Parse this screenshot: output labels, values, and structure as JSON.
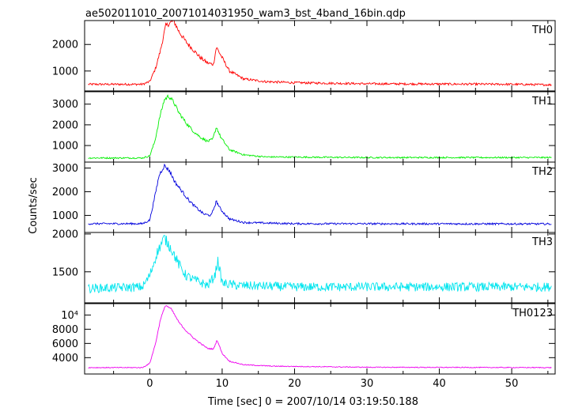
{
  "chart_data": {
    "type": "line",
    "title": "ae502011010_20071014031950_wam3_bst_4band_16bin.qdp",
    "xlabel": "Time [sec] 0 = 2007/10/14 03:19:50.188",
    "ylabel": "Counts/sec",
    "xlim": [
      -9,
      56
    ],
    "x_ticks": [
      0,
      10,
      20,
      30,
      40,
      50
    ],
    "x_tick_labels": [
      "0",
      "10",
      "20",
      "30",
      "40",
      "50"
    ],
    "grid": false,
    "panels": [
      {
        "name": "TH0",
        "color": "#ff0000",
        "ylim": [
          250,
          2900
        ],
        "y_ticks": [
          1000,
          2000
        ],
        "y_tick_labels": [
          "1000",
          "2000"
        ],
        "base": 500,
        "noise": 40,
        "points": [
          [
            -8.5,
            500
          ],
          [
            -1,
            500
          ],
          [
            0,
            600
          ],
          [
            0.8,
            1100
          ],
          [
            1.5,
            1800
          ],
          [
            2.2,
            2700
          ],
          [
            3.3,
            2900
          ],
          [
            4,
            2500
          ],
          [
            5,
            2100
          ],
          [
            6,
            1800
          ],
          [
            7,
            1500
          ],
          [
            8,
            1300
          ],
          [
            8.8,
            1250
          ],
          [
            9.2,
            1900
          ],
          [
            9.8,
            1600
          ],
          [
            11,
            1000
          ],
          [
            13,
            700
          ],
          [
            16,
            600
          ],
          [
            20,
            560
          ],
          [
            30,
            520
          ],
          [
            40,
            510
          ],
          [
            50,
            500
          ],
          [
            55.5,
            480
          ]
        ]
      },
      {
        "name": "TH1",
        "color": "#00ee00",
        "ylim": [
          200,
          3600
        ],
        "y_ticks": [
          1000,
          2000,
          3000
        ],
        "y_tick_labels": [
          "1000",
          "2000",
          "3000"
        ],
        "base": 400,
        "noise": 35,
        "points": [
          [
            -8.5,
            400
          ],
          [
            -1,
            400
          ],
          [
            0,
            500
          ],
          [
            0.7,
            1200
          ],
          [
            1.4,
            2400
          ],
          [
            2,
            3200
          ],
          [
            2.6,
            3400
          ],
          [
            3.3,
            3100
          ],
          [
            4,
            2600
          ],
          [
            5,
            2100
          ],
          [
            6,
            1700
          ],
          [
            7,
            1400
          ],
          [
            8,
            1200
          ],
          [
            8.7,
            1300
          ],
          [
            9.2,
            1900
          ],
          [
            9.8,
            1400
          ],
          [
            11,
            800
          ],
          [
            13,
            550
          ],
          [
            16,
            450
          ],
          [
            30,
            420
          ],
          [
            55.5,
            420
          ]
        ]
      },
      {
        "name": "TH2",
        "color": "#0000dd",
        "ylim": [
          280,
          3250
        ],
        "y_ticks": [
          1000,
          2000,
          3000
        ],
        "y_tick_labels": [
          "1000",
          "2000",
          "3000"
        ],
        "base": 650,
        "noise": 40,
        "points": [
          [
            -8.5,
            650
          ],
          [
            -1,
            650
          ],
          [
            0,
            800
          ],
          [
            0.7,
            1800
          ],
          [
            1.3,
            2700
          ],
          [
            2,
            3100
          ],
          [
            2.7,
            2900
          ],
          [
            3.5,
            2400
          ],
          [
            4.5,
            2000
          ],
          [
            5.5,
            1600
          ],
          [
            6.5,
            1300
          ],
          [
            7.5,
            1050
          ],
          [
            8.5,
            1000
          ],
          [
            9.2,
            1600
          ],
          [
            9.8,
            1250
          ],
          [
            11,
            850
          ],
          [
            13,
            700
          ],
          [
            20,
            650
          ],
          [
            55.5,
            640
          ]
        ]
      },
      {
        "name": "TH3",
        "color": "#00e5ee",
        "ylim": [
          1090,
          2020
        ],
        "y_ticks": [
          1500,
          2000
        ],
        "y_tick_labels": [
          "1500",
          "2000"
        ],
        "base": 1300,
        "noise": 60,
        "points": [
          [
            -8.5,
            1280
          ],
          [
            -1,
            1300
          ],
          [
            0,
            1450
          ],
          [
            1,
            1750
          ],
          [
            2,
            1950
          ],
          [
            3,
            1800
          ],
          [
            4,
            1600
          ],
          [
            5,
            1450
          ],
          [
            6,
            1400
          ],
          [
            8,
            1320
          ],
          [
            9,
            1450
          ],
          [
            9.4,
            1650
          ],
          [
            10,
            1350
          ],
          [
            12,
            1320
          ],
          [
            20,
            1300
          ],
          [
            55.5,
            1300
          ]
        ]
      },
      {
        "name": "TH0123",
        "color": "#ee00ee",
        "ylim": [
          1700,
          11600
        ],
        "y_ticks": [
          4000,
          6000,
          8000,
          10000
        ],
        "y_tick_labels": [
          "4000",
          "6000",
          "8000",
          "10⁴"
        ],
        "base": 2600,
        "noise": 60,
        "points": [
          [
            -8.5,
            2600
          ],
          [
            -1,
            2600
          ],
          [
            0,
            3200
          ],
          [
            0.8,
            6000
          ],
          [
            1.5,
            9500
          ],
          [
            2.2,
            11400
          ],
          [
            3,
            10800
          ],
          [
            4,
            9000
          ],
          [
            5,
            7800
          ],
          [
            6,
            6800
          ],
          [
            7,
            6000
          ],
          [
            8,
            5300
          ],
          [
            8.8,
            5200
          ],
          [
            9.3,
            6500
          ],
          [
            10,
            4600
          ],
          [
            11,
            3500
          ],
          [
            13,
            3000
          ],
          [
            17,
            2800
          ],
          [
            30,
            2650
          ],
          [
            55.5,
            2600
          ]
        ]
      }
    ]
  }
}
